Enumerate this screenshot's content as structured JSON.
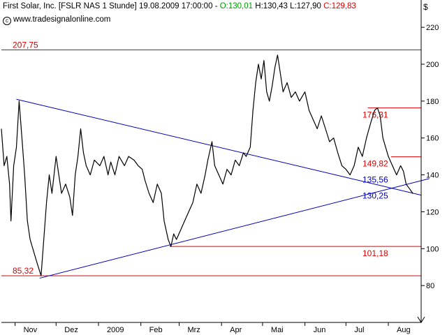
{
  "header": {
    "instrument": "First Solar, Inc. [FSLR NAS  1 Stunde]",
    "datetime": "19.08.2009 17:00:00",
    "dash": "-",
    "open": "O:130,01",
    "high": "H:130,43",
    "low": "L:127,90",
    "close": "C:129,83",
    "copyright_symbol": "c",
    "source": "www.tradesignalonline.com",
    "currency": "$"
  },
  "colors": {
    "price": "#000000",
    "horizontal_lines": "#e00000",
    "trendlines": "#0000c0",
    "open_text": "#00a000",
    "close_text": "#e00000"
  },
  "chart_data": {
    "type": "line",
    "xlabel": "",
    "ylabel": "",
    "currency": "$",
    "y_axis_side": "right",
    "ylim": [
      60,
      228
    ],
    "y_ticks": [
      80,
      100,
      120,
      140,
      160,
      180,
      200,
      220
    ],
    "x_range": [
      "2008-10-22",
      "2009-08-25"
    ],
    "x_ticks": [
      {
        "date": "2008-11-01",
        "label": "Nov"
      },
      {
        "date": "2008-12-01",
        "label": "Dez"
      },
      {
        "date": "2009-01-01",
        "label": "2009"
      },
      {
        "date": "2009-02-01",
        "label": "Feb"
      },
      {
        "date": "2009-03-01",
        "label": "Mrz"
      },
      {
        "date": "2009-04-01",
        "label": "Apr"
      },
      {
        "date": "2009-05-01",
        "label": "Mai"
      },
      {
        "date": "2009-06-01",
        "label": "Jun"
      },
      {
        "date": "2009-07-01",
        "label": "Jul"
      },
      {
        "date": "2009-08-01",
        "label": "Aug"
      }
    ],
    "grid": false,
    "series": [
      {
        "type": "line",
        "points": [
          [
            "2008-10-22",
            165
          ],
          [
            "2008-10-24",
            145
          ],
          [
            "2008-10-26",
            150
          ],
          [
            "2008-10-28",
            135
          ],
          [
            "2008-10-29",
            115
          ],
          [
            "2008-10-31",
            145
          ],
          [
            "2008-11-02",
            155
          ],
          [
            "2008-11-04",
            180
          ],
          [
            "2008-11-06",
            160
          ],
          [
            "2008-11-08",
            140
          ],
          [
            "2008-11-10",
            115
          ],
          [
            "2008-11-12",
            105
          ],
          [
            "2008-11-14",
            100
          ],
          [
            "2008-11-16",
            95
          ],
          [
            "2008-11-18",
            90
          ],
          [
            "2008-11-20",
            85.3
          ],
          [
            "2008-11-22",
            105
          ],
          [
            "2008-11-24",
            125
          ],
          [
            "2008-11-26",
            140
          ],
          [
            "2008-11-28",
            130
          ],
          [
            "2008-12-01",
            150
          ],
          [
            "2008-12-03",
            140
          ],
          [
            "2008-12-05",
            130
          ],
          [
            "2008-12-08",
            135
          ],
          [
            "2008-12-11",
            128
          ],
          [
            "2008-12-13",
            118
          ],
          [
            "2008-12-15",
            140
          ],
          [
            "2008-12-17",
            150
          ],
          [
            "2008-12-19",
            165
          ],
          [
            "2008-12-21",
            152
          ],
          [
            "2008-12-23",
            145
          ],
          [
            "2008-12-26",
            140
          ],
          [
            "2008-12-29",
            148
          ],
          [
            "2009-01-02",
            145
          ],
          [
            "2009-01-05",
            150
          ],
          [
            "2009-01-08",
            140
          ],
          [
            "2009-01-10",
            147
          ],
          [
            "2009-01-13",
            140
          ],
          [
            "2009-01-16",
            150
          ],
          [
            "2009-01-20",
            145
          ],
          [
            "2009-01-23",
            150
          ],
          [
            "2009-01-27",
            148
          ],
          [
            "2009-01-30",
            145
          ],
          [
            "2009-02-02",
            143
          ],
          [
            "2009-02-04",
            137
          ],
          [
            "2009-02-07",
            130
          ],
          [
            "2009-02-10",
            125
          ],
          [
            "2009-02-13",
            135
          ],
          [
            "2009-02-16",
            130
          ],
          [
            "2009-02-18",
            115
          ],
          [
            "2009-02-21",
            105
          ],
          [
            "2009-02-23",
            101.2
          ],
          [
            "2009-02-25",
            108
          ],
          [
            "2009-02-27",
            105
          ],
          [
            "2009-03-02",
            110
          ],
          [
            "2009-03-05",
            115
          ],
          [
            "2009-03-08",
            120
          ],
          [
            "2009-03-11",
            125
          ],
          [
            "2009-03-14",
            135
          ],
          [
            "2009-03-17",
            130
          ],
          [
            "2009-03-20",
            140
          ],
          [
            "2009-03-22",
            148
          ],
          [
            "2009-03-25",
            158
          ],
          [
            "2009-03-27",
            145
          ],
          [
            "2009-03-30",
            140
          ],
          [
            "2009-04-02",
            135
          ],
          [
            "2009-04-05",
            143
          ],
          [
            "2009-04-08",
            140
          ],
          [
            "2009-04-11",
            148
          ],
          [
            "2009-04-14",
            145
          ],
          [
            "2009-04-17",
            152
          ],
          [
            "2009-04-19",
            150
          ],
          [
            "2009-04-22",
            155
          ],
          [
            "2009-04-24",
            175
          ],
          [
            "2009-04-26",
            190
          ],
          [
            "2009-04-28",
            200
          ],
          [
            "2009-04-30",
            192
          ],
          [
            "2009-05-02",
            202
          ],
          [
            "2009-05-04",
            185
          ],
          [
            "2009-05-06",
            180
          ],
          [
            "2009-05-08",
            188
          ],
          [
            "2009-05-10",
            198
          ],
          [
            "2009-05-12",
            205
          ],
          [
            "2009-05-14",
            195
          ],
          [
            "2009-05-16",
            185
          ],
          [
            "2009-05-19",
            190
          ],
          [
            "2009-05-22",
            182
          ],
          [
            "2009-05-25",
            185
          ],
          [
            "2009-05-28",
            180
          ],
          [
            "2009-06-01",
            185
          ],
          [
            "2009-06-04",
            175
          ],
          [
            "2009-06-07",
            170
          ],
          [
            "2009-06-10",
            165
          ],
          [
            "2009-06-13",
            172
          ],
          [
            "2009-06-16",
            165
          ],
          [
            "2009-06-19",
            158
          ],
          [
            "2009-06-22",
            160
          ],
          [
            "2009-06-25",
            152
          ],
          [
            "2009-06-28",
            145
          ],
          [
            "2009-07-01",
            143
          ],
          [
            "2009-07-04",
            140
          ],
          [
            "2009-07-07",
            145
          ],
          [
            "2009-07-10",
            155
          ],
          [
            "2009-07-13",
            150
          ],
          [
            "2009-07-16",
            160
          ],
          [
            "2009-07-19",
            168
          ],
          [
            "2009-07-22",
            175
          ],
          [
            "2009-07-24",
            176.3
          ],
          [
            "2009-07-26",
            172
          ],
          [
            "2009-07-28",
            160
          ],
          [
            "2009-07-30",
            155
          ],
          [
            "2009-08-01",
            150
          ],
          [
            "2009-08-04",
            145
          ],
          [
            "2009-08-07",
            140
          ],
          [
            "2009-08-10",
            145
          ],
          [
            "2009-08-12",
            142
          ],
          [
            "2009-08-14",
            135
          ],
          [
            "2009-08-17",
            132
          ],
          [
            "2009-08-19",
            129.8
          ]
        ]
      }
    ],
    "trendlines": [
      {
        "type": "trendline",
        "start": [
          "2008-11-02",
          181
        ],
        "end": [
          "2009-08-25",
          129
        ]
      },
      {
        "type": "trendline",
        "start": [
          "2008-11-19",
          84
        ],
        "end": [
          "2009-08-31",
          138
        ]
      }
    ],
    "horizontal_levels": [
      {
        "value": 207.75,
        "label": "207,75",
        "start": "2008-10-22",
        "label_side": "left"
      },
      {
        "value": 176.31,
        "label": "176,31",
        "start": "2009-07-17",
        "label_side": "right"
      },
      {
        "value": 149.82,
        "label": "149,82",
        "start": "2009-08-03",
        "label_side": "right"
      },
      {
        "value": 101.18,
        "label": "101,18",
        "start": "2009-02-22",
        "label_side": "right"
      },
      {
        "value": 85.32,
        "label": "85,32",
        "start": "2008-10-22",
        "label_side": "left"
      }
    ],
    "annotations": [
      {
        "text": "135,56",
        "value": 135.56,
        "color": "#0000c0"
      },
      {
        "text": "130,25",
        "value": 130.25,
        "color": "#0000c0"
      }
    ]
  }
}
